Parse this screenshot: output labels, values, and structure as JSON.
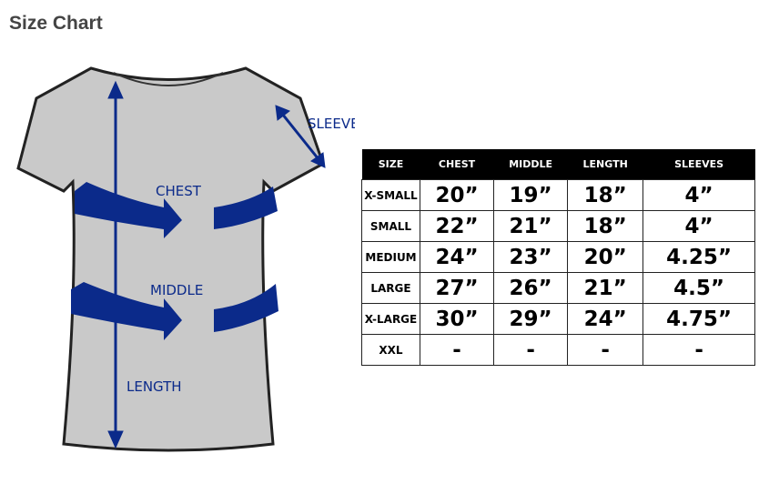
{
  "title": "Size Chart",
  "diagram": {
    "labels": {
      "sleeve": "SLEEVE",
      "chest": "CHEST",
      "middle": "MIDDLE",
      "length": "LENGTH"
    },
    "arrow_color": "#0b2a8a"
  },
  "table": {
    "headers": [
      "SIZE",
      "CHEST",
      "MIDDLE",
      "LENGTH",
      "SLEEVES"
    ],
    "rows": [
      [
        "X-SMALL",
        "20”",
        "19”",
        "18”",
        "4”"
      ],
      [
        "SMALL",
        "22”",
        "21”",
        "18”",
        "4”"
      ],
      [
        "MEDIUM",
        "24”",
        "23”",
        "20”",
        "4.25”"
      ],
      [
        "LARGE",
        "27”",
        "26”",
        "21”",
        "4.5”"
      ],
      [
        "X-LARGE",
        "30”",
        "29”",
        "24”",
        "4.75”"
      ],
      [
        "XXL",
        "-",
        "-",
        "-",
        "-"
      ]
    ]
  }
}
